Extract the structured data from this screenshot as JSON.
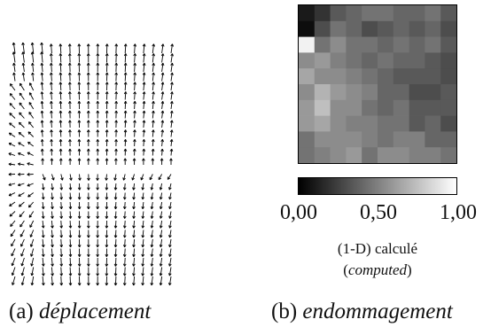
{
  "panel_a": {
    "caption_label": "(a)",
    "caption_text": "déplacement"
  },
  "panel_b": {
    "caption_label": "(b)",
    "caption_text": "endommagement",
    "colorbar": {
      "ticks": [
        "0,00",
        "0,50",
        "1,00"
      ],
      "min": 0,
      "max": 1
    },
    "label_line1": "(1-D) calculé",
    "label_line2": "computed",
    "grid": [
      [
        0.1,
        0.2,
        0.35,
        0.4,
        0.45,
        0.45,
        0.4,
        0.4,
        0.45,
        0.35
      ],
      [
        0.05,
        0.3,
        0.45,
        0.4,
        0.3,
        0.35,
        0.4,
        0.35,
        0.4,
        0.3
      ],
      [
        0.95,
        0.45,
        0.55,
        0.45,
        0.45,
        0.4,
        0.45,
        0.4,
        0.45,
        0.35
      ],
      [
        0.55,
        0.6,
        0.5,
        0.45,
        0.4,
        0.45,
        0.4,
        0.4,
        0.35,
        0.3
      ],
      [
        0.65,
        0.55,
        0.55,
        0.5,
        0.45,
        0.4,
        0.35,
        0.35,
        0.35,
        0.3
      ],
      [
        0.55,
        0.7,
        0.6,
        0.55,
        0.5,
        0.4,
        0.4,
        0.3,
        0.3,
        0.35
      ],
      [
        0.6,
        0.75,
        0.55,
        0.55,
        0.45,
        0.4,
        0.45,
        0.35,
        0.35,
        0.35
      ],
      [
        0.6,
        0.65,
        0.55,
        0.5,
        0.5,
        0.45,
        0.45,
        0.35,
        0.4,
        0.3
      ],
      [
        0.45,
        0.55,
        0.55,
        0.55,
        0.5,
        0.45,
        0.5,
        0.5,
        0.4,
        0.4
      ],
      [
        0.45,
        0.5,
        0.55,
        0.6,
        0.45,
        0.55,
        0.55,
        0.5,
        0.5,
        0.45
      ]
    ]
  }
}
